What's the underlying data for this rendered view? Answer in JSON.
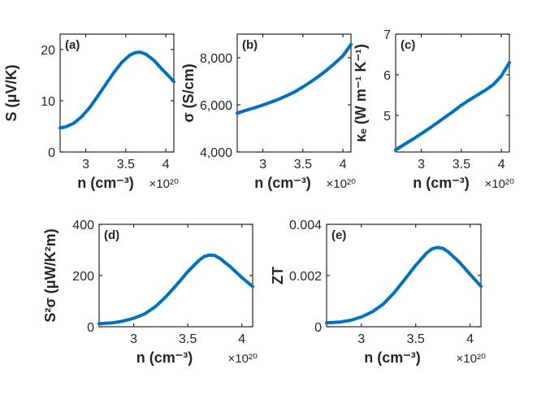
{
  "line_color": "#0072BD",
  "axis_color": "#262626",
  "chart_data": [
    {
      "panel": "(a)",
      "type": "line",
      "xlabel": "n (cm⁻³)",
      "x_multiplier": "×10²⁰",
      "ylabel": "S (μV/K)",
      "xlim": [
        2.68,
        4.1
      ],
      "ylim": [
        0,
        23
      ],
      "xticks": [
        3,
        3.5,
        4
      ],
      "xtick_labels": [
        "3",
        "3.5",
        "4"
      ],
      "yticks": [
        0,
        10,
        20
      ],
      "ytick_labels": [
        "0",
        "10",
        "20"
      ],
      "x": [
        2.68,
        2.75,
        2.85,
        2.95,
        3.05,
        3.15,
        3.25,
        3.35,
        3.45,
        3.55,
        3.62,
        3.68,
        3.75,
        3.85,
        3.95,
        4.05,
        4.1
      ],
      "y": [
        4.7,
        4.9,
        5.6,
        6.9,
        8.7,
        10.9,
        13.2,
        15.5,
        17.5,
        18.9,
        19.4,
        19.5,
        19.1,
        17.9,
        16.2,
        14.6,
        13.7
      ]
    },
    {
      "panel": "(b)",
      "type": "line",
      "xlabel": "n (cm⁻³)",
      "x_multiplier": "×10²⁰",
      "ylabel": "σ (S/cm)",
      "xlim": [
        2.68,
        4.1
      ],
      "ylim": [
        4000,
        9000
      ],
      "xticks": [
        3,
        3.5,
        4
      ],
      "xtick_labels": [
        "3",
        "3.5",
        "4"
      ],
      "yticks": [
        4000,
        6000,
        8000
      ],
      "ytick_labels": [
        "4,000",
        "6,000",
        "8,000"
      ],
      "x": [
        2.68,
        2.8,
        2.9,
        3.0,
        3.1,
        3.2,
        3.3,
        3.4,
        3.5,
        3.6,
        3.7,
        3.8,
        3.9,
        4.0,
        4.1
      ],
      "y": [
        5650,
        5780,
        5880,
        5990,
        6110,
        6240,
        6390,
        6560,
        6760,
        6980,
        7220,
        7480,
        7770,
        8080,
        8560
      ]
    },
    {
      "panel": "(c)",
      "type": "line",
      "xlabel": "n (cm⁻³)",
      "x_multiplier": "×10²⁰",
      "ylabel": "κₑ (W m⁻¹ K⁻¹)",
      "xlim": [
        2.68,
        4.1
      ],
      "ylim": [
        4.1,
        7.0
      ],
      "xticks": [
        3,
        3.5,
        4
      ],
      "xtick_labels": [
        "3",
        "3.5",
        "4"
      ],
      "yticks": [
        5,
        6,
        7
      ],
      "ytick_labels": [
        "5",
        "6",
        "7"
      ],
      "x": [
        2.68,
        2.8,
        2.9,
        3.0,
        3.1,
        3.2,
        3.3,
        3.4,
        3.5,
        3.6,
        3.7,
        3.8,
        3.9,
        4.0,
        4.1
      ],
      "y": [
        4.15,
        4.3,
        4.42,
        4.55,
        4.68,
        4.82,
        4.96,
        5.1,
        5.25,
        5.38,
        5.5,
        5.62,
        5.76,
        5.97,
        6.3
      ]
    },
    {
      "panel": "(d)",
      "type": "line",
      "xlabel": "n (cm⁻³)",
      "x_multiplier": "×10²⁰",
      "ylabel": "S²σ (μW/K²m)",
      "xlim": [
        2.68,
        4.1
      ],
      "ylim": [
        0,
        400
      ],
      "xticks": [
        3,
        3.5,
        4
      ],
      "xtick_labels": [
        "3",
        "3.5",
        "4"
      ],
      "yticks": [
        0,
        200,
        400
      ],
      "ytick_labels": [
        "0",
        "200",
        "400"
      ],
      "x": [
        2.68,
        2.8,
        2.9,
        3.0,
        3.1,
        3.2,
        3.3,
        3.4,
        3.5,
        3.6,
        3.65,
        3.7,
        3.75,
        3.8,
        3.9,
        4.0,
        4.1
      ],
      "y": [
        12,
        15,
        22,
        33,
        50,
        78,
        118,
        165,
        215,
        258,
        274,
        280,
        278,
        266,
        232,
        192,
        157
      ]
    },
    {
      "panel": "(e)",
      "type": "line",
      "xlabel": "n (cm⁻³)",
      "x_multiplier": "×10²⁰",
      "ylabel": "ZT",
      "xlim": [
        2.68,
        4.1
      ],
      "ylim": [
        0,
        0.004
      ],
      "xticks": [
        3,
        3.5,
        4
      ],
      "xtick_labels": [
        "3",
        "3.5",
        "4"
      ],
      "yticks": [
        0,
        0.002,
        0.004
      ],
      "ytick_labels": [
        "0",
        "0.002",
        "0.004"
      ],
      "x": [
        2.68,
        2.8,
        2.9,
        3.0,
        3.1,
        3.2,
        3.3,
        3.4,
        3.5,
        3.6,
        3.65,
        3.7,
        3.75,
        3.8,
        3.9,
        4.0,
        4.1
      ],
      "y": [
        0.00015,
        0.00018,
        0.00025,
        0.00038,
        0.00058,
        0.00088,
        0.00132,
        0.00185,
        0.0024,
        0.00288,
        0.00304,
        0.0031,
        0.00306,
        0.00292,
        0.00253,
        0.00205,
        0.00158
      ]
    }
  ]
}
